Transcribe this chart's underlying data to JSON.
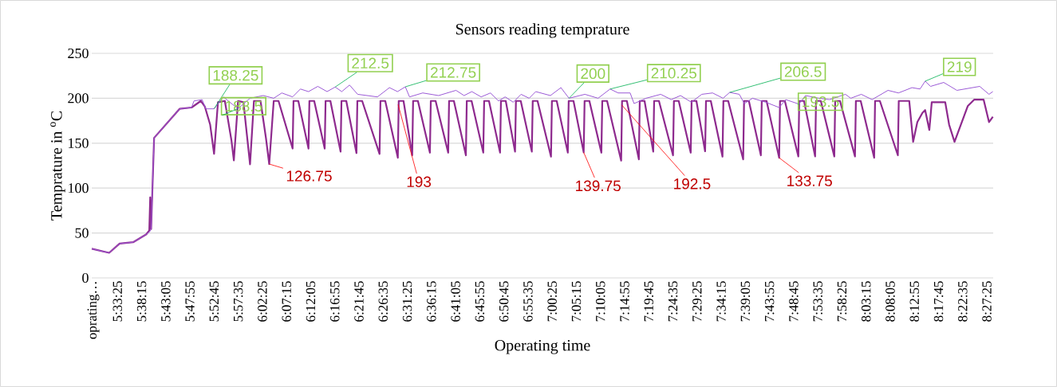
{
  "chart_data": {
    "type": "line",
    "title": "Sensors reading temprature",
    "xlabel": "Operating time",
    "ylabel": "Temprature in $^{o}$C",
    "xlim": [
      5.471,
      8.478
    ],
    "ylim": [
      0,
      250
    ],
    "yticks": [
      0,
      50,
      100,
      150,
      200,
      250
    ],
    "grid": "y",
    "xticks": [
      {
        "value": 5.47639,
        "label": "oprating…"
      },
      {
        "value": 5.55694,
        "label": "5:33:25"
      },
      {
        "value": 5.6375,
        "label": "5:38:15"
      },
      {
        "value": 5.71806,
        "label": "5:43:05"
      },
      {
        "value": 5.79861,
        "label": "5:47:55"
      },
      {
        "value": 5.87917,
        "label": "5:52:45"
      },
      {
        "value": 5.95972,
        "label": "5:57:35"
      },
      {
        "value": 6.04028,
        "label": "6:02:25"
      },
      {
        "value": 6.12083,
        "label": "6:07:15"
      },
      {
        "value": 6.20139,
        "label": "6:12:05"
      },
      {
        "value": 6.28194,
        "label": "6:16:55"
      },
      {
        "value": 6.3625,
        "label": "6:21:45"
      },
      {
        "value": 6.44306,
        "label": "6:26:35"
      },
      {
        "value": 6.52361,
        "label": "6:31:25"
      },
      {
        "value": 6.60417,
        "label": "6:36:15"
      },
      {
        "value": 6.68472,
        "label": "6:41:05"
      },
      {
        "value": 6.76528,
        "label": "6:45:55"
      },
      {
        "value": 6.84583,
        "label": "6:50:45"
      },
      {
        "value": 6.92639,
        "label": "6:55:35"
      },
      {
        "value": 7.00694,
        "label": "7:00:25"
      },
      {
        "value": 7.0875,
        "label": "7:05:15"
      },
      {
        "value": 7.16806,
        "label": "7:10:05"
      },
      {
        "value": 7.24861,
        "label": "7:14:55"
      },
      {
        "value": 7.32917,
        "label": "7:19:45"
      },
      {
        "value": 7.40972,
        "label": "7:24:35"
      },
      {
        "value": 7.49028,
        "label": "7:29:25"
      },
      {
        "value": 7.57083,
        "label": "7:34:15"
      },
      {
        "value": 7.65139,
        "label": "7:39:05"
      },
      {
        "value": 7.73194,
        "label": "7:43:55"
      },
      {
        "value": 7.8125,
        "label": "7:48:45"
      },
      {
        "value": 7.89306,
        "label": "7:53:35"
      },
      {
        "value": 7.97361,
        "label": "7:58:25"
      },
      {
        "value": 8.05417,
        "label": "8:03:15"
      },
      {
        "value": 8.13472,
        "label": "8:08:05"
      },
      {
        "value": 8.21528,
        "label": "8:12:55"
      },
      {
        "value": 8.29583,
        "label": "8:17:45"
      },
      {
        "value": 8.37639,
        "label": "8:22:35"
      },
      {
        "value": 8.45694,
        "label": "8:27:25"
      }
    ],
    "series": [
      {
        "color": "#8e2a8e",
        "x": [
          5.471,
          5.529,
          5.564,
          5.609,
          5.653,
          5.663,
          5.666,
          5.669,
          5.679,
          5.764,
          5.804,
          5.835,
          5.848,
          5.866,
          5.879,
          5.892,
          5.915,
          5.937,
          5.945,
          5.959,
          5.977,
          5.999,
          6.012,
          6.034,
          6.052,
          6.063,
          6.078,
          6.094,
          6.141,
          6.144,
          6.16,
          6.194,
          6.197,
          6.213,
          6.248,
          6.251,
          6.267,
          6.301,
          6.304,
          6.32,
          6.354,
          6.357,
          6.373,
          6.431,
          6.434,
          6.45,
          6.492,
          6.495,
          6.511,
          6.54,
          6.543,
          6.559,
          6.599,
          6.602,
          6.618,
          6.66,
          6.663,
          6.679,
          6.719,
          6.722,
          6.738,
          6.777,
          6.78,
          6.796,
          6.833,
          6.836,
          6.852,
          6.883,
          6.886,
          6.902,
          6.939,
          6.942,
          6.958,
          7.003,
          7.006,
          7.022,
          7.059,
          7.062,
          7.078,
          7.112,
          7.115,
          7.131,
          7.171,
          7.174,
          7.19,
          7.237,
          7.24,
          7.256,
          7.296,
          7.299,
          7.315,
          7.344,
          7.347,
          7.363,
          7.41,
          7.413,
          7.429,
          7.469,
          7.472,
          7.488,
          7.517,
          7.52,
          7.536,
          7.575,
          7.578,
          7.594,
          7.644,
          7.647,
          7.663,
          7.703,
          7.706,
          7.722,
          7.764,
          7.767,
          7.783,
          7.828,
          7.831,
          7.847,
          7.884,
          7.887,
          7.903,
          7.948,
          7.951,
          7.967,
          8.017,
          8.02,
          8.036,
          8.081,
          8.084,
          8.1,
          8.16,
          8.163,
          8.198,
          8.211,
          8.225,
          8.242,
          8.251,
          8.265,
          8.273,
          8.318,
          8.331,
          8.349,
          8.393,
          8.415,
          8.446,
          8.464,
          8.477
        ],
        "values": [
          32.4,
          27.9,
          38.2,
          39.7,
          48.5,
          52.9,
          89.7,
          54.4,
          155.9,
          188.2,
          189.7,
          197,
          191,
          170.6,
          138.2,
          195.6,
          197,
          153,
          130.9,
          197,
          195.6,
          126.5,
          197,
          197,
          155.9,
          126.75,
          197,
          197,
          144,
          197,
          197,
          144,
          197,
          197,
          144,
          197,
          197,
          140.6,
          197,
          197,
          139,
          197,
          197,
          138,
          197,
          197,
          133.8,
          197,
          197,
          136.5,
          197,
          197,
          139.5,
          197,
          197,
          139.5,
          197,
          197,
          136.5,
          197,
          197,
          139.5,
          197,
          197,
          139.5,
          197,
          197,
          140.6,
          197,
          197,
          140.6,
          197,
          197,
          135,
          197,
          197,
          139.5,
          197,
          197,
          139.75,
          197,
          197,
          139.5,
          197,
          197,
          130.6,
          197,
          197,
          132,
          197,
          197,
          140.6,
          197,
          197,
          136.5,
          197,
          197,
          139.5,
          197,
          197,
          141,
          197,
          197,
          135,
          197,
          197,
          132,
          197,
          197,
          136.5,
          197,
          197,
          133.75,
          197,
          197,
          135.3,
          197,
          197,
          135.3,
          197,
          197,
          135.3,
          197,
          197,
          135.3,
          197,
          197,
          133.8,
          197,
          197,
          136.5,
          197,
          197,
          151.5,
          173.5,
          183.8,
          186.8,
          164.7,
          195.6,
          195.6,
          170.6,
          151.5,
          191.2,
          198.5,
          198.5,
          173.5,
          179.4
        ]
      },
      {
        "color": "#9b59d6",
        "x": [
          5.471,
          5.529,
          5.564,
          5.609,
          5.653,
          5.666,
          5.669,
          5.679,
          5.764,
          5.804,
          5.812,
          5.839,
          5.852,
          5.879,
          5.91,
          5.937,
          5.959,
          5.999,
          6.043,
          6.078,
          6.105,
          6.141,
          6.167,
          6.194,
          6.225,
          6.256,
          6.283,
          6.305,
          6.331,
          6.358,
          6.424,
          6.464,
          6.491,
          6.517,
          6.531,
          6.575,
          6.628,
          6.686,
          6.713,
          6.739,
          6.77,
          6.801,
          6.828,
          6.85,
          6.877,
          6.903,
          6.93,
          6.952,
          7.001,
          7.036,
          7.063,
          7.116,
          7.16,
          7.2,
          7.227,
          7.267,
          7.28,
          7.32,
          7.369,
          7.404,
          7.435,
          7.471,
          7.506,
          7.542,
          7.577,
          7.599,
          7.631,
          7.648,
          7.675,
          7.719,
          7.764,
          7.786,
          7.83,
          7.852,
          7.897,
          7.932,
          7.985,
          8.003,
          8.038,
          8.074,
          8.127,
          8.162,
          8.207,
          8.234,
          8.251,
          8.269,
          8.313,
          8.357,
          8.433,
          8.464,
          8.477
        ],
        "values": [
          32.4,
          27.9,
          38.2,
          39.7,
          48.5,
          52,
          55,
          155.9,
          188.2,
          189.7,
          197,
          198.5,
          188.2,
          188.25,
          201.5,
          194.1,
          188.5,
          200,
          203,
          200,
          205.9,
          201.5,
          210.3,
          207.4,
          213.2,
          207.4,
          212.5,
          207.4,
          214.7,
          204.4,
          201.5,
          211.8,
          207.4,
          212.75,
          201.5,
          205.9,
          203,
          208.8,
          203,
          207.4,
          201.5,
          205.9,
          197,
          201.5,
          195.6,
          204.4,
          200,
          207.4,
          203,
          211.8,
          200,
          204.4,
          200,
          210.25,
          205.9,
          205.9,
          194.1,
          200,
          204.4,
          198.5,
          203,
          195.6,
          204.4,
          205.9,
          200,
          206.5,
          204.4,
          194.1,
          200,
          195.6,
          189.7,
          198.5,
          193.5,
          203,
          200,
          198.5,
          204.4,
          200,
          204.4,
          198.5,
          208.8,
          205.9,
          211.8,
          210.3,
          219,
          213.2,
          217.6,
          208.8,
          213.2,
          204.4,
          207.4
        ]
      }
    ],
    "annotations": [
      {
        "text": "188.25",
        "x": 5.879,
        "y": 188.25
      },
      {
        "text": "188.5",
        "x": 5.959,
        "y": 188.5
      },
      {
        "text": "212.5",
        "x": 6.283,
        "y": 212.5
      },
      {
        "text": "212.75",
        "x": 6.517,
        "y": 212.75
      },
      {
        "text": "200",
        "x": 7.063,
        "y": 200
      },
      {
        "text": "210.25",
        "x": 7.2,
        "y": 210.25
      },
      {
        "text": "206.5",
        "x": 7.599,
        "y": 206.5
      },
      {
        "text": "193.5",
        "x": 7.83,
        "y": 193.5
      },
      {
        "text": "219",
        "x": 8.251,
        "y": 219
      },
      {
        "text": "126.75",
        "x": 6.063,
        "y": 126.75
      },
      {
        "text": "193",
        "x": 6.493,
        "y": 193
      },
      {
        "text": "139.75",
        "x": 7.112,
        "y": 139.75
      },
      {
        "text": "192.5",
        "x": 7.239,
        "y": 192.5
      },
      {
        "text": "133.75",
        "x": 7.764,
        "y": 133.75
      }
    ]
  }
}
